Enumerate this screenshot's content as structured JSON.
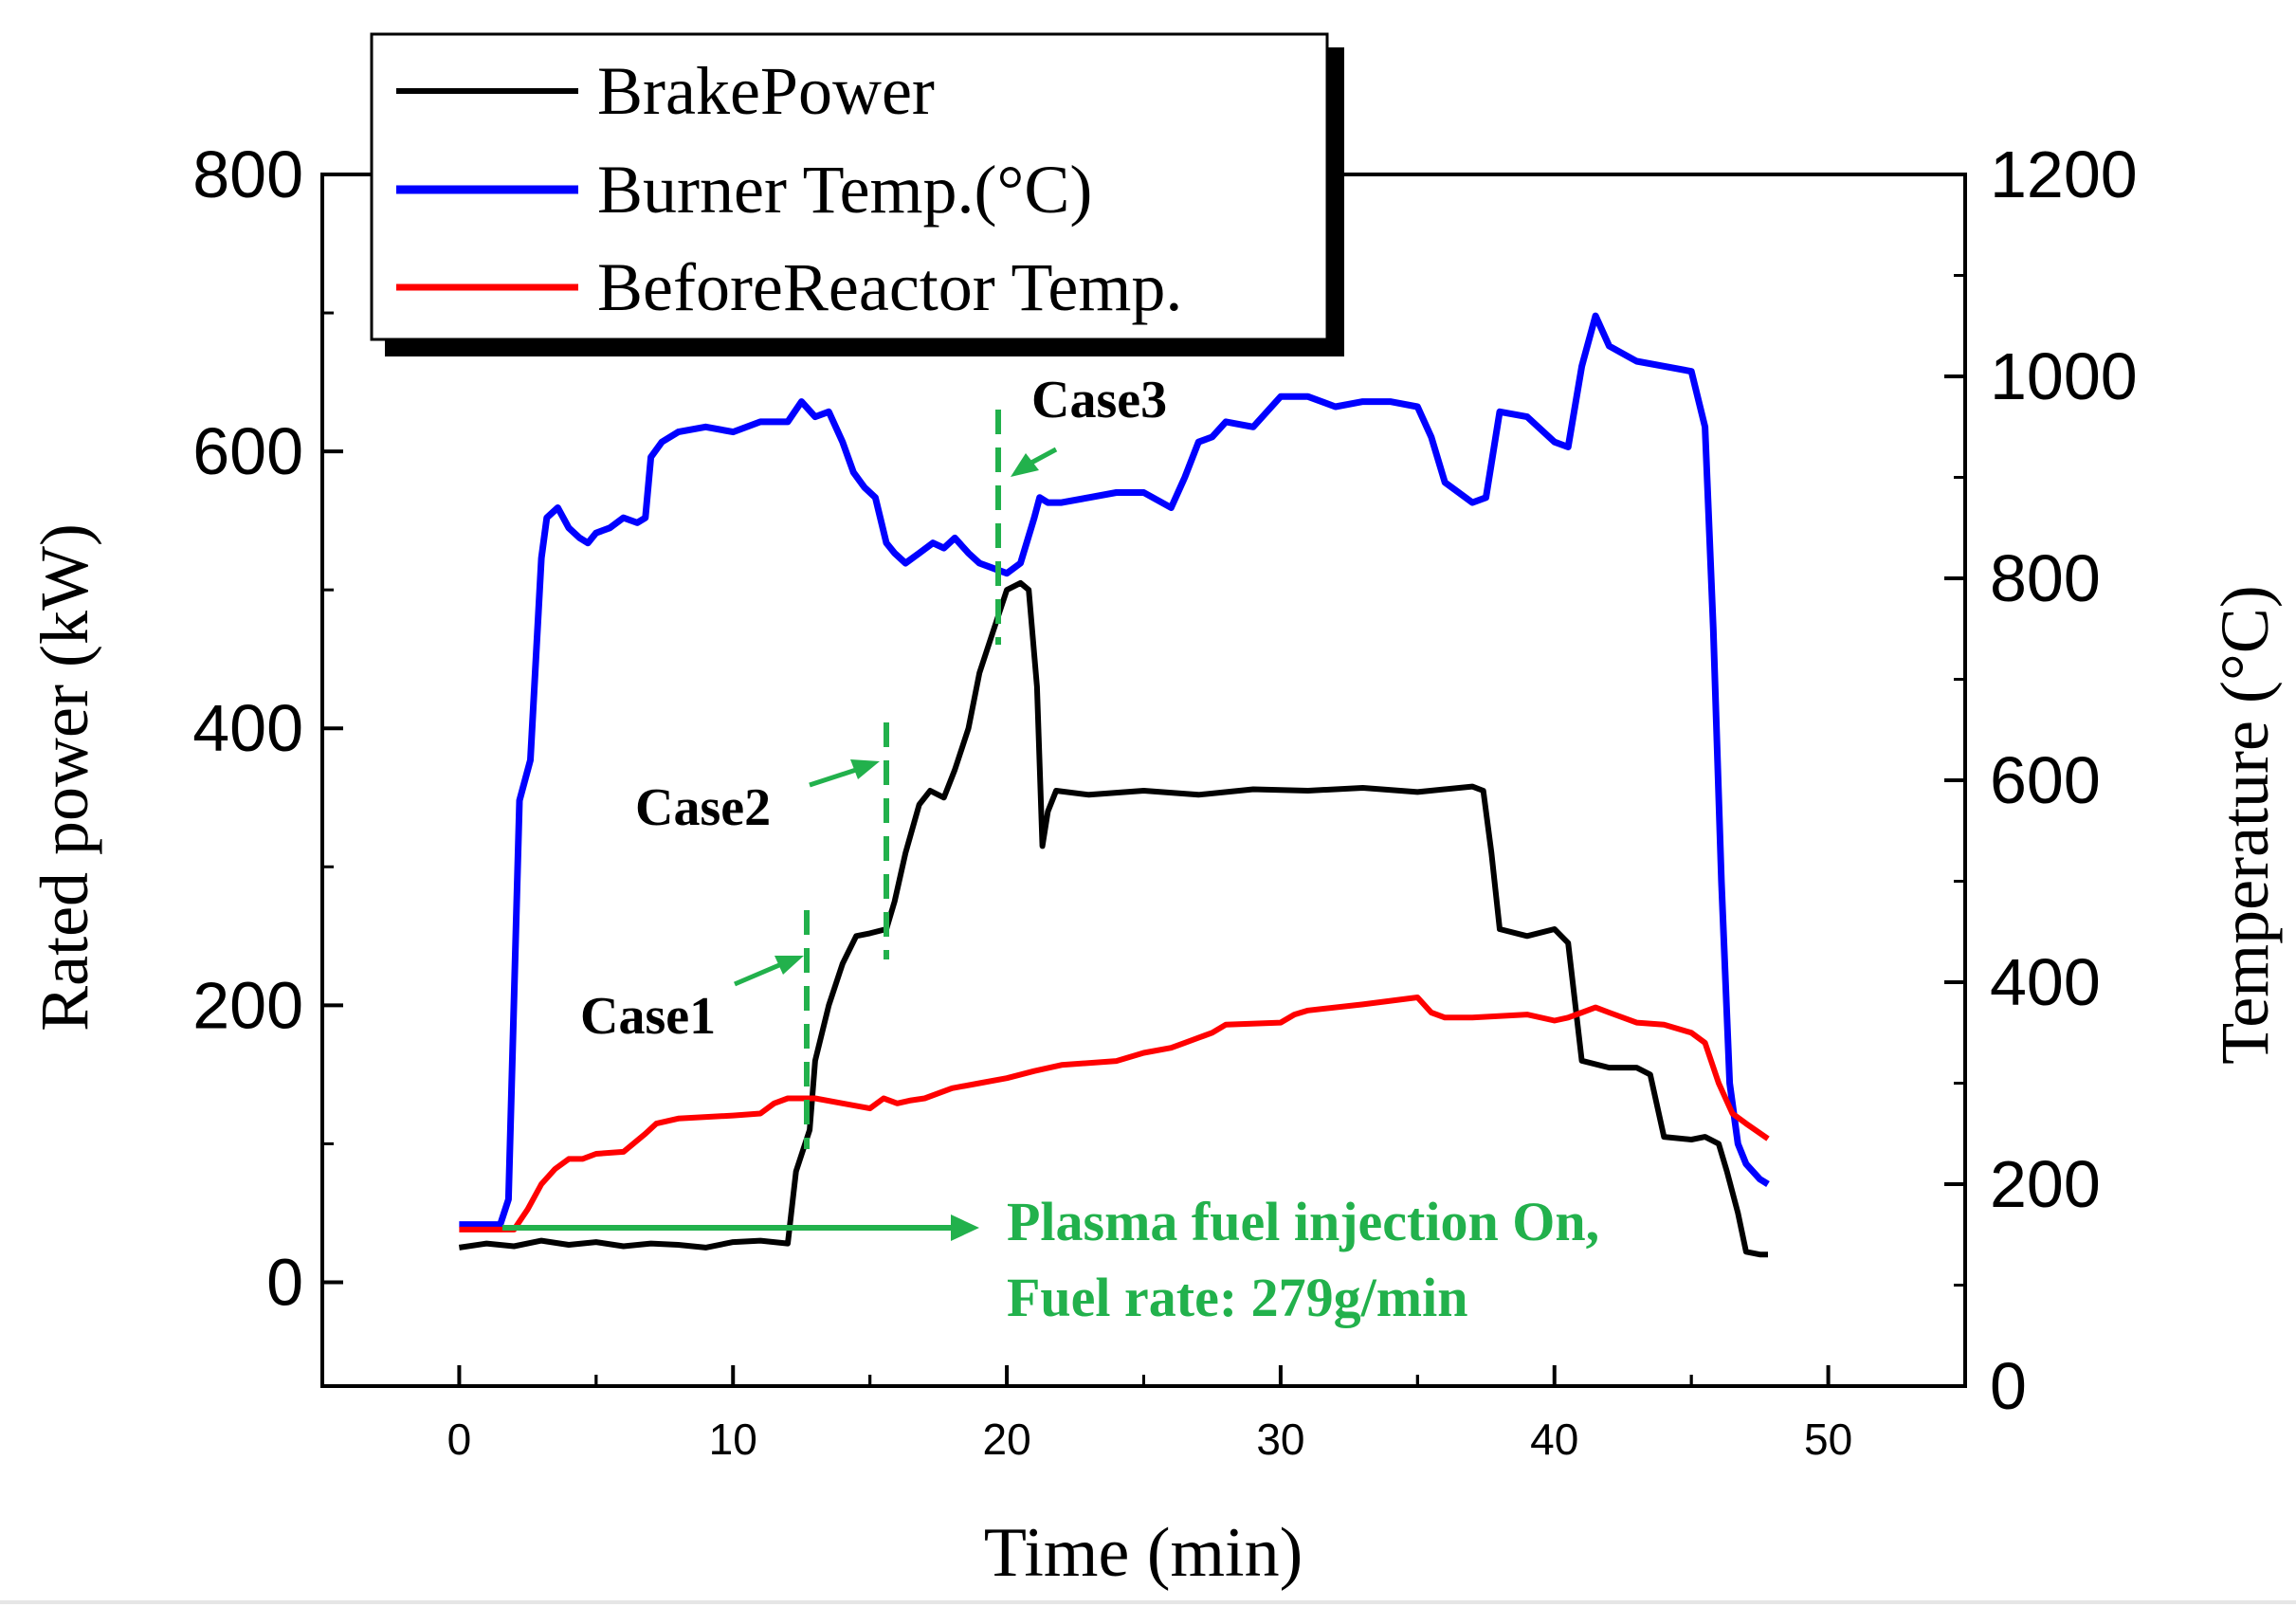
{
  "chart_data": {
    "type": "line",
    "xlabel": "Time (min)",
    "ylabel_left": "Rated power (kW)",
    "ylabel_right": "Temperature (°C)",
    "xlim": [
      -5,
      55
    ],
    "ylim_left": [
      -75,
      800
    ],
    "ylim_right": [
      0,
      1200
    ],
    "x_ticks": [
      0,
      10,
      20,
      30,
      40,
      50
    ],
    "y_left_ticks": [
      0,
      200,
      400,
      600,
      800
    ],
    "y_right_ticks": [
      0,
      200,
      400,
      600,
      800,
      1000,
      1200
    ],
    "x_tick_labels": [
      "0",
      "10",
      "20",
      "30",
      "40",
      "50"
    ],
    "y_left_tick_labels": [
      "0",
      "200",
      "400",
      "600",
      "800"
    ],
    "y_right_tick_labels": [
      "0",
      "200",
      "400",
      "600",
      "800",
      "1000",
      "1200"
    ],
    "legend": {
      "placement": "top-left",
      "entries": [
        "BrakePower",
        "Burner Temp.(°C)",
        "BeforeReactor Temp."
      ]
    },
    "series": [
      {
        "name": "BrakePower",
        "axis": "left",
        "color": "#000000",
        "x": [
          0,
          1,
          2,
          3,
          4,
          5,
          6,
          7,
          8,
          9,
          10,
          11,
          12,
          12.3,
          12.8,
          13,
          13.5,
          14,
          14.5,
          15,
          15.6,
          15.9,
          16.3,
          16.8,
          17.2,
          17.7,
          18.1,
          18.6,
          19,
          19.5,
          20,
          20.5,
          20.8,
          21.1,
          21.3,
          21.5,
          21.8,
          23,
          25,
          27,
          29,
          31,
          33,
          35,
          37,
          37.4,
          37.7,
          38,
          39,
          40,
          40.5,
          41,
          42,
          43,
          43.5,
          44,
          45,
          45.5,
          46,
          46.3,
          46.7,
          47,
          47.5,
          47.8
        ],
        "y": [
          25,
          28,
          26,
          30,
          27,
          29,
          26,
          28,
          27,
          25,
          29,
          30,
          28,
          80,
          110,
          160,
          200,
          230,
          250,
          252,
          255,
          275,
          310,
          345,
          355,
          350,
          370,
          400,
          440,
          470,
          500,
          505,
          500,
          430,
          315,
          340,
          355,
          352,
          355,
          352,
          356,
          355,
          357,
          354,
          358,
          355,
          310,
          255,
          250,
          255,
          245,
          160,
          155,
          155,
          150,
          105,
          103,
          105,
          100,
          80,
          50,
          22,
          20,
          20
        ]
      },
      {
        "name": "Burner Temp.(°C)",
        "axis": "right",
        "color": "#0000ff",
        "x": [
          0,
          1,
          1.5,
          1.8,
          2.2,
          2.6,
          3,
          3.2,
          3.6,
          4,
          4.4,
          4.7,
          5,
          5.5,
          6,
          6.5,
          6.8,
          7,
          7.4,
          8,
          9,
          10,
          11,
          12,
          12.5,
          13,
          13.5,
          14,
          14.4,
          14.8,
          15.2,
          15.6,
          15.9,
          16.3,
          16.8,
          17.3,
          17.7,
          18.1,
          18.6,
          19,
          19.5,
          20,
          20.5,
          21,
          21.2,
          21.5,
          22,
          23,
          24,
          25,
          26,
          26.5,
          27,
          27.5,
          28,
          29,
          30,
          31,
          32,
          33,
          34,
          35,
          35.5,
          36,
          37,
          37.5,
          38,
          39,
          40,
          40.5,
          41,
          41.5,
          42,
          43,
          44,
          45,
          45.5,
          45.8,
          46.1,
          46.4,
          46.7,
          47,
          47.5,
          47.8
        ],
        "y": [
          160,
          160,
          160,
          185,
          580,
          620,
          820,
          860,
          870,
          850,
          840,
          835,
          845,
          850,
          860,
          855,
          860,
          920,
          935,
          945,
          950,
          945,
          955,
          955,
          975,
          960,
          965,
          935,
          905,
          890,
          880,
          835,
          825,
          815,
          825,
          835,
          830,
          840,
          825,
          815,
          810,
          805,
          815,
          860,
          880,
          875,
          875,
          880,
          885,
          885,
          870,
          900,
          935,
          940,
          955,
          950,
          980,
          980,
          970,
          975,
          975,
          970,
          940,
          895,
          875,
          880,
          965,
          960,
          935,
          930,
          1010,
          1060,
          1030,
          1015,
          1010,
          1005,
          950,
          750,
          500,
          300,
          240,
          220,
          205,
          200
        ]
      },
      {
        "name": "BeforeReactor Temp.",
        "axis": "right",
        "color": "#ff0000",
        "x": [
          0,
          1,
          2,
          2.5,
          3,
          3.5,
          4,
          4.5,
          5,
          6,
          6.8,
          7.2,
          8,
          10,
          11,
          11.5,
          12,
          12.5,
          13,
          14,
          15,
          15.5,
          16,
          16.5,
          17,
          18,
          19,
          20,
          21,
          22,
          24,
          25,
          26,
          26.5,
          27,
          27.5,
          28,
          30,
          30.5,
          31,
          33,
          35,
          35.5,
          36,
          37,
          39,
          40,
          40.5,
          41,
          41.5,
          42,
          43,
          44,
          45,
          45.5,
          46,
          46.5,
          47,
          47.8
        ],
        "y": [
          155,
          155,
          155,
          175,
          200,
          215,
          225,
          225,
          230,
          232,
          250,
          260,
          265,
          268,
          270,
          280,
          285,
          285,
          285,
          280,
          275,
          285,
          280,
          283,
          285,
          295,
          300,
          305,
          312,
          318,
          322,
          330,
          335,
          340,
          345,
          350,
          358,
          360,
          368,
          372,
          378,
          385,
          370,
          365,
          365,
          368,
          362,
          365,
          370,
          375,
          370,
          360,
          358,
          350,
          340,
          300,
          270,
          260,
          245
        ]
      }
    ],
    "annotations": [
      {
        "text": "Case1",
        "x": 12.8
      },
      {
        "text": "Case2",
        "x": 15.6
      },
      {
        "text": "Case3",
        "x": 19.6
      },
      {
        "text": "Plasma fuel injection On,"
      },
      {
        "text": "Fuel rate: 279g/min"
      }
    ],
    "colors": {
      "annotation": "#22b14c",
      "axis": "#000000"
    }
  }
}
